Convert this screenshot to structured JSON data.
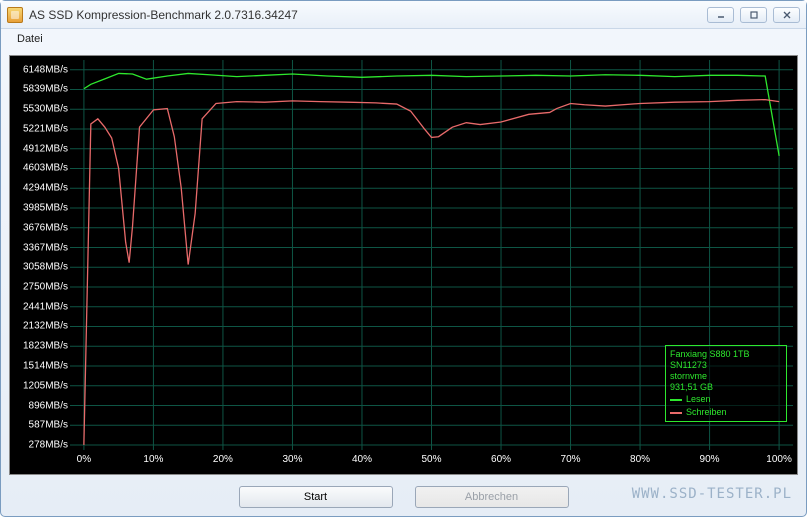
{
  "window": {
    "title": "AS SSD Kompression-Benchmark 2.0.7316.34247"
  },
  "menubar": {
    "items": [
      "Datei"
    ]
  },
  "buttons": {
    "start": "Start",
    "cancel": "Abbrechen"
  },
  "legend": {
    "lines": [
      "Fanxiang S880 1TB",
      "SN11273",
      "stornvme",
      "931,51 GB"
    ],
    "read_label": "Lesen",
    "write_label": "Schreiben",
    "read_color": "#2ee82e",
    "write_color": "#e86a6a",
    "border_color": "#2ee82e"
  },
  "chart": {
    "background": "#000000",
    "grid_color": "#0e5545",
    "yticks": [
      278,
      587,
      896,
      1205,
      1514,
      1823,
      2132,
      2441,
      2750,
      3058,
      3367,
      3676,
      3985,
      4294,
      4603,
      4912,
      5221,
      5530,
      5839,
      6148
    ],
    "yunit": "MB/s",
    "ylim": [
      200,
      6300
    ],
    "xticks": [
      0,
      10,
      20,
      30,
      40,
      50,
      60,
      70,
      80,
      90,
      100
    ],
    "xunit": "%",
    "xlim": [
      -2,
      102
    ],
    "read": {
      "color": "#2ee82e",
      "x": [
        0,
        1,
        3,
        5,
        7,
        9,
        12,
        15,
        18,
        22,
        26,
        30,
        35,
        40,
        45,
        50,
        55,
        60,
        65,
        70,
        75,
        80,
        85,
        90,
        94,
        98,
        100
      ],
      "y": [
        5850,
        5920,
        6005,
        6090,
        6080,
        6000,
        6050,
        6090,
        6070,
        6040,
        6060,
        6080,
        6050,
        6030,
        6050,
        6060,
        6040,
        6050,
        6060,
        6050,
        6070,
        6060,
        6040,
        6060,
        6060,
        6050,
        4800
      ]
    },
    "write": {
      "color": "#e86a6a",
      "x": [
        0,
        1,
        2,
        3,
        4,
        5,
        6,
        6.5,
        7,
        8,
        10,
        12,
        13,
        14,
        15,
        16,
        17,
        19,
        22,
        26,
        30,
        34,
        38,
        42,
        45,
        47,
        49,
        50,
        51,
        53,
        55,
        57,
        60,
        64,
        67,
        68,
        70,
        72,
        75,
        80,
        85,
        90,
        94,
        98,
        100
      ],
      "y": [
        280,
        5300,
        5380,
        5250,
        5080,
        4600,
        3450,
        3130,
        3700,
        5250,
        5520,
        5540,
        5100,
        4300,
        3100,
        3900,
        5380,
        5620,
        5650,
        5640,
        5660,
        5650,
        5640,
        5630,
        5610,
        5500,
        5220,
        5090,
        5100,
        5250,
        5320,
        5290,
        5330,
        5450,
        5480,
        5540,
        5620,
        5600,
        5580,
        5620,
        5640,
        5650,
        5670,
        5680,
        5650
      ]
    }
  },
  "watermark": "WWW.SSD-TESTER.PL"
}
